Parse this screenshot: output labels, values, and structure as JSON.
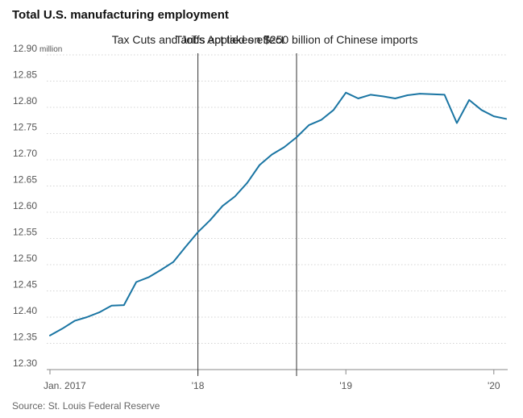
{
  "chart_data": {
    "type": "line",
    "title": "Total U.S. manufacturing employment",
    "source": "Source: St. Louis Federal Reserve",
    "ylabel_unit": "million",
    "ylim": [
      12.3,
      12.9
    ],
    "y_ticks": [
      "12.30",
      "12.35",
      "12.40",
      "12.45",
      "12.50",
      "12.55",
      "12.60",
      "12.65",
      "12.70",
      "12.75",
      "12.80",
      "12.85",
      "12.90"
    ],
    "x_tick_labels": [
      {
        "label": "Jan. 2017",
        "month_index": 0
      },
      {
        "label": "'18",
        "month_index": 12
      },
      {
        "label": "'19",
        "month_index": 24
      },
      {
        "label": "'20",
        "month_index": 36
      }
    ],
    "x_range": [
      0,
      37
    ],
    "series": [
      {
        "name": "Total U.S. manufacturing employment",
        "color": "#1a75a3",
        "x": [
          0,
          1,
          2,
          3,
          4,
          5,
          6,
          7,
          8,
          9,
          10,
          11,
          12,
          13,
          14,
          15,
          16,
          17,
          18,
          19,
          20,
          21,
          22,
          23,
          24,
          25,
          26,
          27,
          28,
          29,
          30,
          31,
          32,
          33,
          34,
          35,
          36,
          37
        ],
        "values": [
          12.365,
          12.378,
          12.393,
          12.4,
          12.409,
          12.422,
          12.423,
          12.467,
          12.476,
          12.49,
          12.505,
          12.534,
          12.562,
          12.585,
          12.612,
          12.63,
          12.656,
          12.69,
          12.71,
          12.724,
          12.743,
          12.766,
          12.776,
          12.795,
          12.828,
          12.817,
          12.824,
          12.821,
          12.817,
          12.823,
          12.826,
          12.825,
          12.824,
          12.77,
          12.814,
          12.795,
          12.783,
          12.778
        ]
      }
    ],
    "annotations": [
      {
        "label": "Tax Cuts and Jobs Act takes effect",
        "month_index": 12
      },
      {
        "label": "Tariffs applied on $250 billion of Chinese imports",
        "month_index": 20
      }
    ],
    "colors": {
      "line": "#1a75a3",
      "grid": "#d4d4d4",
      "annotation_line": "#333333",
      "axis": "#888888"
    }
  }
}
